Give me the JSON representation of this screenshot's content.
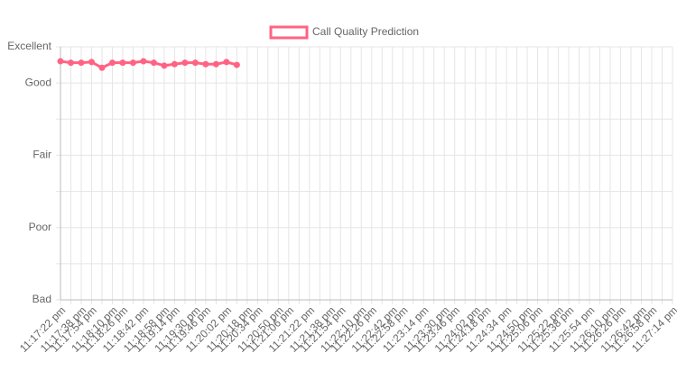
{
  "chart_data": {
    "type": "line",
    "categories": [
      "11:17:22 pm",
      null,
      "11:17:38 pm",
      "11:17:54 pm",
      null,
      "11:18:10 pm",
      "11:18:26 pm",
      null,
      "11:18:42 pm",
      null,
      "11:18:58 pm",
      "11:19:14 pm",
      null,
      "11:19:30 pm",
      "11:19:46 pm",
      null,
      "11:20:02 pm",
      null,
      "11:20:18 pm",
      "11:20:34 pm",
      null,
      "11:20:50 pm",
      "11:21:06 pm",
      null,
      "11:21:22 pm",
      null,
      "11:21:38 pm",
      "11:21:54 pm",
      null,
      "11:22:10 pm",
      "11:22:26 pm",
      null,
      "11:22:42 pm",
      "11:22:58 pm",
      null,
      "11:23:14 pm",
      null,
      "11:23:30 pm",
      "11:23:46 pm",
      null,
      "11:24:02 pm",
      "11:24:18 pm",
      null,
      "11:24:34 pm",
      null,
      "11:24:50 pm",
      "11:25:06 pm",
      null,
      "11:25:22 pm",
      "11:25:38 pm",
      null,
      "11:25:54 pm",
      null,
      "11:26:10 pm",
      "11:26:26 pm",
      null,
      "11:26:42 pm",
      "11:26:58 pm",
      null,
      "11:27:14 pm"
    ],
    "series": [
      {
        "name": "Call Quality Prediction",
        "color": "#ff6384",
        "values": [
          4.3,
          4.28,
          4.28,
          4.29,
          4.21,
          4.28,
          4.28,
          4.28,
          4.3,
          4.28,
          4.24,
          4.26,
          4.28,
          4.28,
          4.26,
          4.26,
          4.29,
          4.25,
          null,
          null,
          null,
          null,
          null,
          null,
          null,
          null,
          null,
          null,
          null,
          null,
          null,
          null,
          null,
          null,
          null,
          null,
          null,
          null,
          null,
          null,
          null,
          null,
          null,
          null,
          null,
          null,
          null,
          null,
          null,
          null,
          null,
          null,
          null,
          null,
          null,
          null,
          null,
          null,
          null,
          null
        ]
      }
    ],
    "ylim": [
      1,
      4.5
    ],
    "yticks": [
      {
        "value": 1,
        "label": "Bad"
      },
      {
        "value": 2,
        "label": "Poor"
      },
      {
        "value": 3,
        "label": "Fair"
      },
      {
        "value": 4,
        "label": "Good"
      },
      {
        "value": 4.5,
        "label": "Excellent"
      }
    ],
    "yminor": [
      1.5,
      2.5,
      3.5
    ],
    "grid": true,
    "legend": "top"
  }
}
